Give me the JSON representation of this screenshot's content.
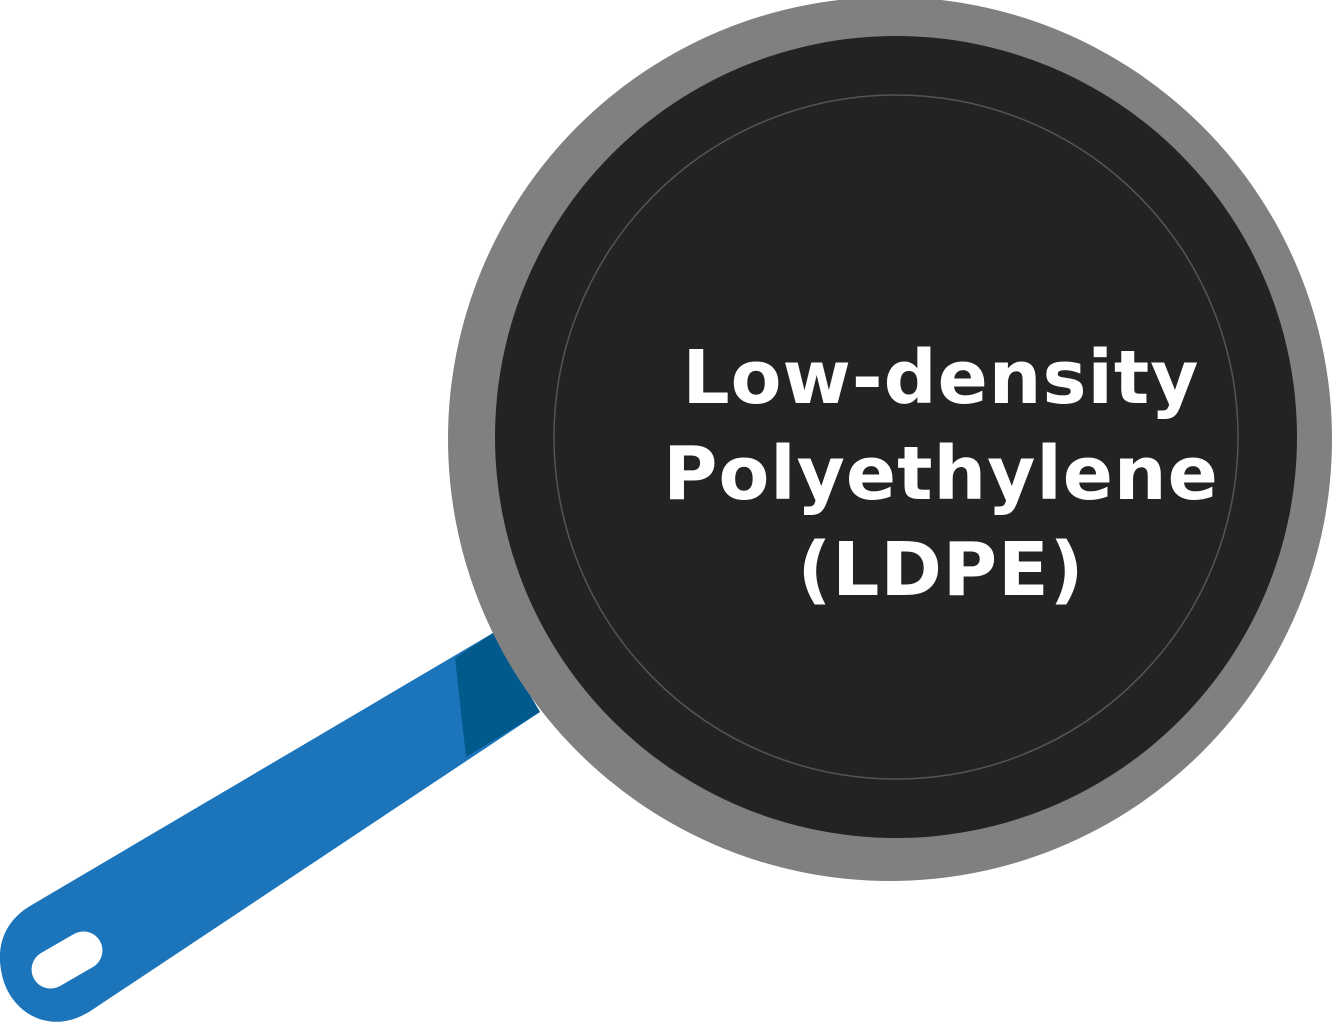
{
  "label": {
    "line1": "Low-density",
    "line2": "Polyethylene",
    "line3": "(LDPE)"
  },
  "colors": {
    "background": "#ffffff",
    "pan_rim": "#808080",
    "pan_surface": "#232323",
    "pan_inner_ring": "#555555",
    "handle": "#1c75bb",
    "handle_shadow": "#025a8c",
    "handle_hole": "#ffffff",
    "text": "#ffffff"
  },
  "icons": [
    "frying-pan-icon"
  ]
}
